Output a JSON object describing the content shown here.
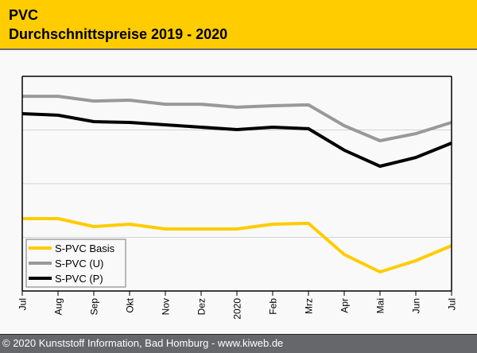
{
  "header": {
    "title": "PVC",
    "subtitle": "Durchschnittspreise 2019 - 2020"
  },
  "footer": {
    "copyright": "© 2020 Kunststoff Information, Bad Homburg - www.kiweb.de"
  },
  "colors": {
    "header_bg": "#ffcc00",
    "footer_bg": "#66676b",
    "plot_bg": "#f9f9f9",
    "grid": "#d3d3d3"
  },
  "chart_data": {
    "type": "line",
    "title": "PVC Durchschnittspreise 2019 - 2020",
    "xlabel": "",
    "ylabel": "",
    "y_unit": "relative index (no y-axis labels shown; 0 = axis bottom, 100 = plot top)",
    "ylim": [
      0,
      100
    ],
    "grid": true,
    "grid_y": [
      25,
      50,
      75
    ],
    "legend_position": "bottom-left",
    "x": [
      "Jul",
      "Aug",
      "Sep",
      "Okt",
      "Nov",
      "Dez",
      "2020",
      "Feb",
      "Mrz",
      "Apr",
      "Mai",
      "Jun",
      "Jul"
    ],
    "series": [
      {
        "name": "S-PVC Basis",
        "color": "#ffcc00",
        "values": [
          33.7,
          33.7,
          30.0,
          31.1,
          28.9,
          28.9,
          28.9,
          31.1,
          31.5,
          17.0,
          8.9,
          14.1,
          21.1
        ]
      },
      {
        "name": "S-PVC (U)",
        "color": "#999999",
        "values": [
          90.7,
          90.7,
          88.5,
          88.9,
          87.0,
          87.0,
          85.6,
          86.3,
          86.7,
          77.0,
          70.0,
          73.3,
          78.5
        ]
      },
      {
        "name": "S-PVC (P)",
        "color": "#000000",
        "values": [
          82.6,
          81.9,
          78.9,
          78.5,
          77.4,
          76.3,
          75.2,
          76.3,
          75.6,
          65.6,
          58.1,
          62.2,
          68.9
        ]
      }
    ]
  }
}
